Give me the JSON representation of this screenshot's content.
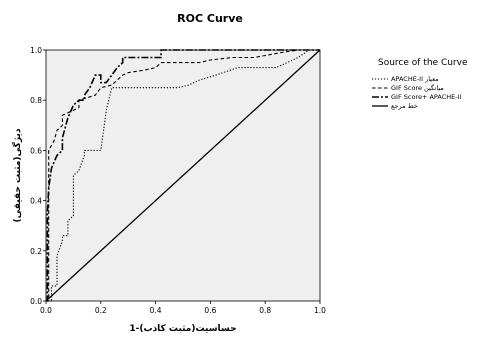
{
  "chart_data": {
    "type": "line",
    "title": "ROC Curve",
    "xlabel": "1-حساسیت(مثبت کاذب)",
    "ylabel": "دیژگی(مثبت حقیقی)",
    "xlim": [
      0,
      1
    ],
    "ylim": [
      0,
      1
    ],
    "x_ticks": [
      "0.0",
      "0.2",
      "0.4",
      "0.6",
      "0.8",
      "1.0"
    ],
    "y_ticks": [
      "0.0",
      "0.2",
      "0.4",
      "0.6",
      "0.8",
      "1.0"
    ],
    "grid": false,
    "background_color": "#efefef",
    "legend": {
      "title": "Source of the Curve",
      "placement": "right",
      "entries": [
        {
          "label": "APACHE-II معیار",
          "style": "dotted"
        },
        {
          "label": "GIF Score میانگین",
          "style": "dashed"
        },
        {
          "label": "GIF Score+ APACHE-II",
          "style": "dash-dot"
        },
        {
          "label": "خط مرجع",
          "style": "solid"
        }
      ]
    },
    "series": [
      {
        "name": "APACHE-II معیار",
        "style": "dotted",
        "x": [
          0,
          0.02,
          0.02,
          0.04,
          0.04,
          0.06,
          0.06,
          0.08,
          0.08,
          0.1,
          0.1,
          0.12,
          0.14,
          0.14,
          0.2,
          0.22,
          0.24,
          0.28,
          0.36,
          0.48,
          0.52,
          0.56,
          0.62,
          0.7,
          0.84,
          0.92,
          0.96,
          1.0
        ],
        "y": [
          0,
          0,
          0.06,
          0.06,
          0.18,
          0.24,
          0.26,
          0.26,
          0.32,
          0.34,
          0.5,
          0.52,
          0.58,
          0.6,
          0.6,
          0.76,
          0.85,
          0.85,
          0.85,
          0.85,
          0.86,
          0.88,
          0.9,
          0.93,
          0.93,
          0.97,
          1.0,
          1.0
        ]
      },
      {
        "name": "GIF Score میانگین",
        "style": "dashed",
        "x": [
          0,
          0.01,
          0.01,
          0.02,
          0.03,
          0.04,
          0.06,
          0.06,
          0.08,
          0.1,
          0.12,
          0.12,
          0.18,
          0.2,
          0.24,
          0.26,
          0.28,
          0.3,
          0.36,
          0.4,
          0.42,
          0.56,
          0.6,
          0.68,
          0.76,
          0.86,
          0.92,
          1.0
        ],
        "y": [
          0,
          0,
          0.6,
          0.62,
          0.64,
          0.68,
          0.7,
          0.74,
          0.75,
          0.76,
          0.77,
          0.8,
          0.82,
          0.85,
          0.86,
          0.88,
          0.9,
          0.91,
          0.92,
          0.93,
          0.95,
          0.95,
          0.96,
          0.97,
          0.97,
          0.99,
          1.0,
          1.0
        ]
      },
      {
        "name": "GIF Score+ APACHE-II",
        "style": "dash-dot",
        "x": [
          0,
          0.005,
          0.005,
          0.01,
          0.02,
          0.04,
          0.06,
          0.06,
          0.08,
          0.1,
          0.12,
          0.14,
          0.14,
          0.16,
          0.18,
          0.2,
          0.2,
          0.22,
          0.24,
          0.26,
          0.28,
          0.28,
          0.36,
          0.42,
          0.42,
          0.5,
          0.58,
          0.6,
          0.68,
          0.82,
          0.96,
          1.0
        ],
        "y": [
          0,
          0,
          0.35,
          0.45,
          0.53,
          0.58,
          0.6,
          0.65,
          0.73,
          0.78,
          0.8,
          0.8,
          0.82,
          0.85,
          0.9,
          0.9,
          0.87,
          0.87,
          0.9,
          0.93,
          0.95,
          0.97,
          0.97,
          0.97,
          1.0,
          1.0,
          1.0,
          1.0,
          1.0,
          1.0,
          1.0,
          1.0
        ]
      },
      {
        "name": "خط مرجع",
        "style": "solid",
        "x": [
          0,
          1
        ],
        "y": [
          0,
          1
        ]
      }
    ]
  }
}
